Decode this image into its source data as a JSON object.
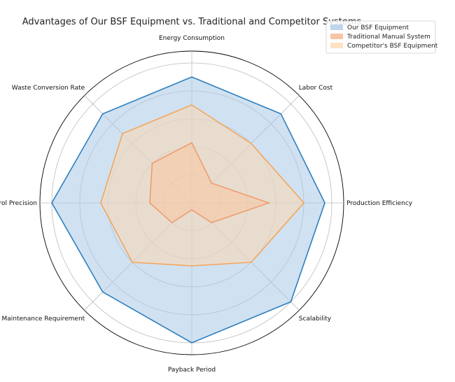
{
  "chart_data": {
    "type": "radar",
    "title": "Advantages of Our BSF Equipment vs. Traditional and Competitor Systems",
    "categories": [
      "Production Efficiency",
      "Labor Cost",
      "Energy Consumption",
      "Waste Conversion Rate",
      "Control Precision",
      "Maintenance Requirement",
      "Payback Period",
      "Scalability"
    ],
    "rlim": [
      0,
      10
    ],
    "grid": true,
    "legend_position": "top-right",
    "series": [
      {
        "name": "Our BSF Equipment",
        "values": [
          9.5,
          9,
          9,
          9,
          10,
          9,
          10,
          10
        ],
        "color": "#2e7fbf",
        "fill": "#a9c9e6"
      },
      {
        "name": "Traditional Manual System",
        "values": [
          5.5,
          2,
          4.3,
          4,
          3,
          2,
          0.5,
          2
        ],
        "color": "#e0521b",
        "fill": "#f4b08a"
      },
      {
        "name": "Competitor's BSF Equipment",
        "values": [
          8,
          6,
          7,
          7,
          6.5,
          6,
          4.5,
          6
        ],
        "color": "#f5a55a",
        "fill": "#fbd9b2"
      }
    ]
  }
}
